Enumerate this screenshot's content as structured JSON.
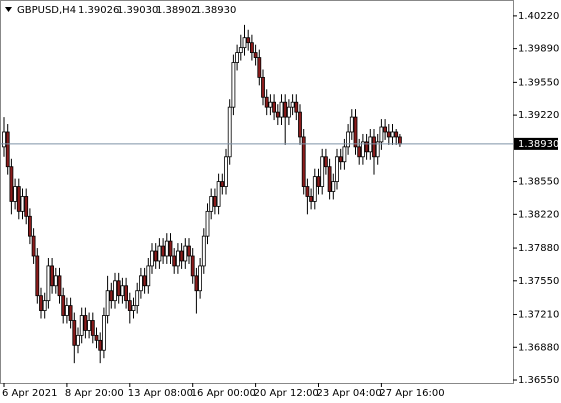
{
  "chart_data": {
    "type": "candlestick",
    "header": {
      "symbol": "GBPUSD,H4",
      "values": [
        "1.39026",
        "1.39030",
        "1.38902",
        "1.38930"
      ]
    },
    "categories": [
      "6 Apr 2021",
      null,
      null,
      null,
      null,
      null,
      null,
      null,
      null,
      null,
      null,
      null,
      null,
      null,
      null,
      null,
      null,
      "8 Apr 20:00",
      null,
      null,
      null,
      null,
      null,
      null,
      null,
      null,
      null,
      null,
      null,
      null,
      null,
      null,
      null,
      null,
      "13 Apr 08:00",
      null,
      null,
      null,
      null,
      null,
      null,
      null,
      null,
      null,
      null,
      null,
      null,
      null,
      null,
      null,
      null,
      "16 Apr 00:00",
      null,
      null,
      null,
      null,
      null,
      null,
      null,
      null,
      null,
      null,
      null,
      null,
      null,
      null,
      null,
      null,
      "20 Apr 12:00",
      null,
      null,
      null,
      null,
      null,
      null,
      null,
      null,
      null,
      null,
      null,
      null,
      null,
      null,
      null,
      null,
      "23 Apr 04:00",
      null,
      null,
      null,
      null,
      null,
      null,
      null,
      null,
      null,
      null,
      null,
      null,
      null,
      null,
      null,
      null,
      "27 Apr 16:00",
      null,
      null,
      null,
      null,
      null
    ],
    "open": [
      1.389,
      1.3905,
      1.387,
      1.3835,
      1.385,
      1.3825,
      1.384,
      1.382,
      1.38,
      1.378,
      1.374,
      1.3725,
      1.3735,
      1.377,
      1.375,
      1.376,
      1.374,
      1.372,
      1.373,
      1.3715,
      1.369,
      1.37,
      1.372,
      1.3705,
      1.3715,
      1.37,
      1.3695,
      1.3685,
      1.372,
      1.3745,
      1.3735,
      1.3755,
      1.374,
      1.375,
      1.3735,
      1.3725,
      1.373,
      1.3745,
      1.376,
      1.375,
      1.377,
      1.3785,
      1.3775,
      1.379,
      1.378,
      1.3795,
      1.378,
      1.377,
      1.3785,
      1.3775,
      1.379,
      1.378,
      1.376,
      1.3745,
      1.377,
      1.38,
      1.3825,
      1.384,
      1.383,
      1.3855,
      1.385,
      1.388,
      1.393,
      1.3975,
      1.3985,
      1.399,
      1.4,
      1.3995,
      1.3985,
      1.398,
      1.396,
      1.394,
      1.393,
      1.3935,
      1.3925,
      1.392,
      1.3935,
      1.392,
      1.393,
      1.3935,
      1.3925,
      1.39,
      1.385,
      1.384,
      1.3835,
      1.386,
      1.385,
      1.388,
      1.387,
      1.3845,
      1.3855,
      1.388,
      1.3875,
      1.389,
      1.3905,
      1.392,
      1.389,
      1.388,
      1.3895,
      1.3885,
      1.39,
      1.388,
      1.3895,
      1.391,
      1.3905,
      1.39,
      1.3905,
      1.39
    ],
    "high": [
      1.392,
      1.3913,
      1.3878,
      1.3858,
      1.3858,
      1.3848,
      1.3848,
      1.3828,
      1.3808,
      1.3788,
      1.3748,
      1.3743,
      1.3778,
      1.3778,
      1.3768,
      1.3768,
      1.3748,
      1.3738,
      1.3738,
      1.3723,
      1.3708,
      1.3728,
      1.3728,
      1.3723,
      1.3723,
      1.3708,
      1.3703,
      1.3728,
      1.376,
      1.3753,
      1.3763,
      1.3763,
      1.3758,
      1.3758,
      1.3743,
      1.3738,
      1.3753,
      1.3768,
      1.3768,
      1.3778,
      1.3793,
      1.3793,
      1.3798,
      1.3798,
      1.3803,
      1.3803,
      1.3788,
      1.3793,
      1.3793,
      1.3798,
      1.3798,
      1.3788,
      1.3768,
      1.3778,
      1.3808,
      1.3833,
      1.3848,
      1.3848,
      1.3863,
      1.3863,
      1.3888,
      1.3938,
      1.3983,
      1.3993,
      1.4003,
      1.4013,
      1.4008,
      1.4003,
      1.3993,
      1.3988,
      1.3968,
      1.3948,
      1.3943,
      1.3943,
      1.3933,
      1.3943,
      1.3943,
      1.3938,
      1.3943,
      1.3943,
      1.3933,
      1.3908,
      1.3858,
      1.3848,
      1.3868,
      1.3868,
      1.3888,
      1.3888,
      1.3878,
      1.3863,
      1.3888,
      1.3888,
      1.3898,
      1.3913,
      1.3928,
      1.3928,
      1.3898,
      1.3903,
      1.3903,
      1.3908,
      1.3908,
      1.3903,
      1.3918,
      1.3918,
      1.3913,
      1.3913,
      1.3908,
      1.3903
    ],
    "low": [
      1.388,
      1.3862,
      1.3822,
      1.3827,
      1.3817,
      1.3817,
      1.3812,
      1.3792,
      1.3772,
      1.3732,
      1.3717,
      1.3717,
      1.3727,
      1.3742,
      1.3742,
      1.3732,
      1.3712,
      1.3712,
      1.3707,
      1.3672,
      1.3682,
      1.3692,
      1.3697,
      1.3697,
      1.3692,
      1.3687,
      1.3672,
      1.3677,
      1.3712,
      1.3727,
      1.3727,
      1.3732,
      1.3732,
      1.3727,
      1.3712,
      1.3717,
      1.3722,
      1.3737,
      1.3742,
      1.3742,
      1.3762,
      1.3767,
      1.3767,
      1.3772,
      1.3772,
      1.3772,
      1.3762,
      1.3762,
      1.3767,
      1.3767,
      1.3772,
      1.3752,
      1.3722,
      1.3737,
      1.3762,
      1.3792,
      1.3817,
      1.3822,
      1.3822,
      1.3842,
      1.3842,
      1.3872,
      1.3922,
      1.3967,
      1.3977,
      1.3982,
      1.3987,
      1.3977,
      1.3972,
      1.3952,
      1.3932,
      1.3922,
      1.3922,
      1.3917,
      1.3912,
      1.3912,
      1.3892,
      1.3912,
      1.3922,
      1.3917,
      1.3892,
      1.3842,
      1.3822,
      1.3827,
      1.3827,
      1.3842,
      1.3842,
      1.3862,
      1.3837,
      1.3837,
      1.3847,
      1.3867,
      1.3867,
      1.3882,
      1.3897,
      1.3882,
      1.3872,
      1.3872,
      1.3877,
      1.3877,
      1.3862,
      1.3872,
      1.3887,
      1.3897,
      1.3892,
      1.3892,
      1.3892,
      1.389
    ],
    "close": [
      1.3905,
      1.387,
      1.3835,
      1.385,
      1.3825,
      1.384,
      1.382,
      1.38,
      1.378,
      1.374,
      1.3725,
      1.3735,
      1.377,
      1.375,
      1.376,
      1.374,
      1.372,
      1.373,
      1.3715,
      1.369,
      1.37,
      1.372,
      1.3705,
      1.3715,
      1.37,
      1.3695,
      1.3685,
      1.372,
      1.3745,
      1.3735,
      1.3755,
      1.374,
      1.375,
      1.3735,
      1.3725,
      1.373,
      1.3745,
      1.376,
      1.375,
      1.377,
      1.3785,
      1.3775,
      1.379,
      1.378,
      1.3795,
      1.378,
      1.377,
      1.3785,
      1.3775,
      1.379,
      1.378,
      1.376,
      1.3745,
      1.377,
      1.38,
      1.3825,
      1.384,
      1.383,
      1.3855,
      1.385,
      1.388,
      1.393,
      1.3975,
      1.3985,
      1.399,
      1.4,
      1.3995,
      1.3985,
      1.398,
      1.396,
      1.394,
      1.393,
      1.3935,
      1.3925,
      1.392,
      1.3935,
      1.392,
      1.393,
      1.3935,
      1.3925,
      1.39,
      1.385,
      1.384,
      1.3835,
      1.386,
      1.385,
      1.388,
      1.387,
      1.3845,
      1.3855,
      1.388,
      1.3875,
      1.389,
      1.3905,
      1.392,
      1.389,
      1.388,
      1.3895,
      1.3885,
      1.39,
      1.388,
      1.3895,
      1.391,
      1.3905,
      1.39,
      1.3905,
      1.39,
      1.3893
    ],
    "up_color": "#ffffff",
    "down_color": "#8b1c1c",
    "current_price": {
      "value": 1.3893,
      "label": "1.38930"
    },
    "ylim": [
      1.3652,
      1.4036
    ],
    "yticks": [
      {
        "value": 1.4022,
        "label": "1.40220"
      },
      {
        "value": 1.3989,
        "label": "1.39890"
      },
      {
        "value": 1.3955,
        "label": "1.39550"
      },
      {
        "value": 1.3922,
        "label": "1.39220"
      },
      {
        "value": 1.3855,
        "label": "1.38550"
      },
      {
        "value": 1.3822,
        "label": "1.38220"
      },
      {
        "value": 1.3788,
        "label": "1.37880"
      },
      {
        "value": 1.3755,
        "label": "1.37550"
      },
      {
        "value": 1.3721,
        "label": "1.37210"
      },
      {
        "value": 1.3688,
        "label": "1.36880"
      },
      {
        "value": 1.3655,
        "label": "1.36550"
      }
    ]
  }
}
